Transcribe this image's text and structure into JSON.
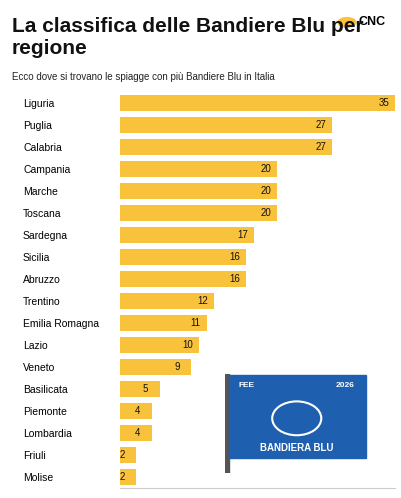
{
  "chart_data": {
    "type": "bar",
    "orientation": "horizontal",
    "title": "La classifica delle Bandiere Blu per regione",
    "subtitle": "Ecco dove si trovano le spiagge con più Bandiere Blu in Italia",
    "categories": [
      "Liguria",
      "Puglia",
      "Calabria",
      "Campania",
      "Marche",
      "Toscana",
      "Sardegna",
      "Sicilia",
      "Abruzzo",
      "Trentino",
      "Emilia Romagna",
      "Lazio",
      "Veneto",
      "Basilicata",
      "Piemonte",
      "Lombardia",
      "Friuli",
      "Molise"
    ],
    "values": [
      35,
      27,
      27,
      20,
      20,
      20,
      17,
      16,
      16,
      12,
      11,
      10,
      9,
      5,
      4,
      4,
      2,
      2
    ],
    "color": "#f9c23c",
    "xlim": [
      0,
      35
    ],
    "xticks": [],
    "data_labels": true,
    "tick_labels": "y",
    "grid": false,
    "annotations": [
      "CNC",
      "FEE",
      "2026",
      "BANDIERA BLU"
    ]
  }
}
